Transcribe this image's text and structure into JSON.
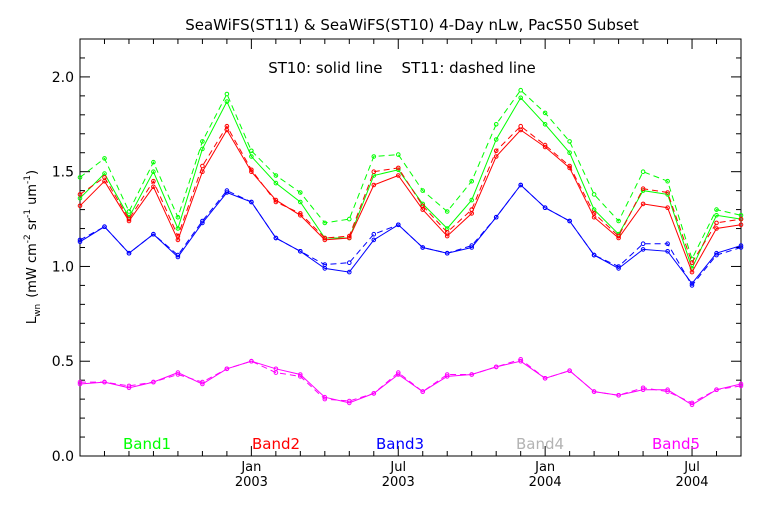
{
  "chart_data": {
    "type": "line",
    "title": "SeaWiFS(ST11) & SeaWiFS(ST10) 4-Day nLw, PacS50 Subset",
    "annotation": "ST10: solid line    ST11: dashed line",
    "ylabel": "L_wn (mW cm^-2 sr^-1 um^-1)",
    "ylabel_main": "L",
    "ylabel_sub": "wn",
    "ylabel_rest": "(mW cm",
    "ylabel_sup1": "-2",
    "ylabel_sr": " sr",
    "ylabel_sup2": "-1",
    "ylabel_um": " um",
    "ylabel_sup3": "-1",
    "ylabel_close": ")",
    "ylim": [
      0.0,
      2.2
    ],
    "xlim": [
      0,
      27
    ],
    "y_ticks": [
      {
        "value": 0.0,
        "label": "0.0"
      },
      {
        "value": 0.5,
        "label": "0.5"
      },
      {
        "value": 1.0,
        "label": "1.0"
      },
      {
        "value": 1.5,
        "label": "1.5"
      },
      {
        "value": 2.0,
        "label": "2.0"
      }
    ],
    "x_ticks": [
      {
        "value": 7.0,
        "month": "Jan",
        "year": "2003"
      },
      {
        "value": 13.0,
        "month": "Jul",
        "year": "2003"
      },
      {
        "value": 19.0,
        "month": "Jan",
        "year": "2004"
      },
      {
        "value": 25.0,
        "month": "Jul",
        "year": "2004"
      }
    ],
    "x": [
      0,
      1,
      2,
      3,
      4,
      5,
      6,
      7,
      8,
      9,
      10,
      11,
      12,
      13,
      14,
      15,
      16,
      17,
      18,
      19,
      20,
      21,
      22,
      23,
      24,
      25,
      26,
      27
    ],
    "series": [
      {
        "name": "Band1",
        "color": "#00ff00",
        "solid": [
          1.36,
          1.49,
          1.26,
          1.5,
          1.2,
          1.62,
          1.87,
          1.58,
          1.44,
          1.34,
          1.15,
          1.15,
          1.48,
          1.51,
          1.33,
          1.2,
          1.35,
          1.67,
          1.89,
          1.75,
          1.6,
          1.3,
          1.17,
          1.4,
          1.38,
          0.99,
          1.27,
          1.25
        ],
        "dashed": [
          1.47,
          1.57,
          1.29,
          1.55,
          1.26,
          1.66,
          1.91,
          1.61,
          1.48,
          1.39,
          1.23,
          1.25,
          1.58,
          1.59,
          1.4,
          1.29,
          1.45,
          1.75,
          1.93,
          1.81,
          1.66,
          1.38,
          1.24,
          1.5,
          1.45,
          1.04,
          1.3,
          1.27
        ]
      },
      {
        "name": "Band2",
        "color": "#ff0000",
        "solid": [
          1.32,
          1.45,
          1.24,
          1.42,
          1.14,
          1.5,
          1.72,
          1.5,
          1.35,
          1.27,
          1.14,
          1.15,
          1.43,
          1.48,
          1.3,
          1.16,
          1.28,
          1.58,
          1.72,
          1.63,
          1.52,
          1.26,
          1.15,
          1.33,
          1.31,
          0.97,
          1.2,
          1.22
        ],
        "dashed": [
          1.38,
          1.47,
          1.25,
          1.45,
          1.16,
          1.53,
          1.74,
          1.51,
          1.34,
          1.28,
          1.15,
          1.16,
          1.5,
          1.52,
          1.32,
          1.18,
          1.3,
          1.61,
          1.74,
          1.64,
          1.53,
          1.28,
          1.16,
          1.41,
          1.39,
          1.02,
          1.23,
          1.25
        ]
      },
      {
        "name": "Band3",
        "color": "#0000ff",
        "solid": [
          1.13,
          1.21,
          1.07,
          1.17,
          1.05,
          1.23,
          1.39,
          1.34,
          1.15,
          1.08,
          0.99,
          0.97,
          1.14,
          1.22,
          1.1,
          1.07,
          1.1,
          1.26,
          1.43,
          1.31,
          1.24,
          1.06,
          0.99,
          1.09,
          1.08,
          0.91,
          1.07,
          1.11
        ],
        "dashed": [
          1.14,
          1.21,
          1.07,
          1.17,
          1.06,
          1.24,
          1.4,
          1.34,
          1.15,
          1.08,
          1.01,
          1.02,
          1.17,
          1.22,
          1.1,
          1.07,
          1.11,
          1.26,
          1.43,
          1.31,
          1.24,
          1.06,
          1.0,
          1.12,
          1.12,
          0.9,
          1.06,
          1.1
        ]
      },
      {
        "name": "Band4",
        "color": "#b3b3b3"
      },
      {
        "name": "Band5",
        "color": "#ff00ff",
        "solid": [
          0.38,
          0.39,
          0.36,
          0.39,
          0.44,
          0.38,
          0.46,
          0.5,
          0.46,
          0.43,
          0.31,
          0.28,
          0.33,
          0.43,
          0.34,
          0.42,
          0.43,
          0.47,
          0.5,
          0.41,
          0.45,
          0.34,
          0.32,
          0.35,
          0.35,
          0.27,
          0.35,
          0.38
        ],
        "dashed": [
          0.39,
          0.39,
          0.37,
          0.39,
          0.43,
          0.39,
          0.46,
          0.5,
          0.44,
          0.42,
          0.3,
          0.29,
          0.33,
          0.44,
          0.34,
          0.43,
          0.43,
          0.47,
          0.51,
          0.41,
          0.45,
          0.34,
          0.32,
          0.36,
          0.34,
          0.28,
          0.35,
          0.37
        ]
      }
    ],
    "grid": false,
    "legend_position": "bottom"
  }
}
